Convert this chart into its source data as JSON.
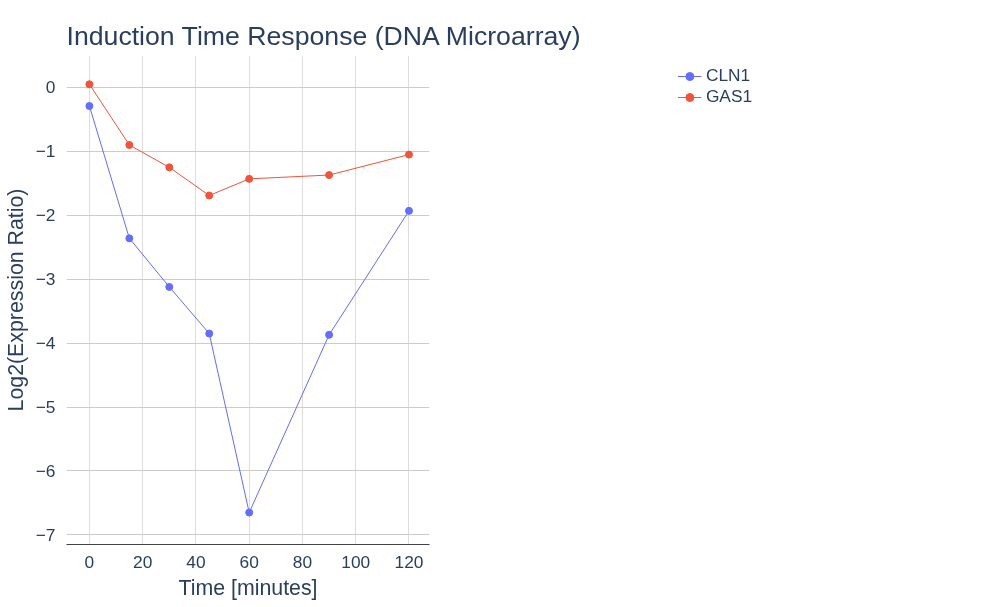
{
  "chart_data": {
    "type": "line",
    "title": "Induction Time Response (DNA Microarray)",
    "xlabel": "Time [minutes]",
    "ylabel": "Log2(Expression Ratio)",
    "x": [
      0,
      15,
      30,
      45,
      60,
      90,
      120
    ],
    "series": [
      {
        "name": "CLN1",
        "color": "#636efa",
        "values": [
          -0.29,
          -2.36,
          -3.12,
          -3.85,
          -6.65,
          -3.87,
          -1.93
        ]
      },
      {
        "name": "GAS1",
        "color": "#ef553b",
        "values": [
          0.05,
          -0.9,
          -1.25,
          -1.69,
          -1.43,
          -1.37,
          -1.05
        ]
      }
    ],
    "xlim": [
      -8.6,
      127.7
    ],
    "ylim": [
      -7.15,
      0.5
    ],
    "xticks": [
      0,
      20,
      40,
      60,
      80,
      100,
      120
    ],
    "yticks": [
      {
        "value": 0,
        "label": "0"
      },
      {
        "value": -1,
        "label": "−1"
      },
      {
        "value": -2,
        "label": "−2"
      },
      {
        "value": -3,
        "label": "−3"
      },
      {
        "value": -4,
        "label": "−4"
      },
      {
        "value": -5,
        "label": "−5"
      },
      {
        "value": -6,
        "label": "−6"
      },
      {
        "value": -7,
        "label": "−7"
      }
    ],
    "grid": true,
    "legend": "top right",
    "marker": "circle",
    "line_style": "solid"
  }
}
